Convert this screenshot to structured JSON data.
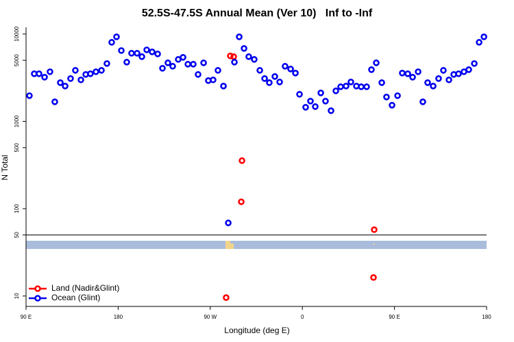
{
  "chart_data": {
    "type": "scatter",
    "title": "52.5S-47.5S Annual Mean (Ver 10)   Inf to -Inf",
    "x_label": "Longitude (deg E)",
    "y_label": "N Total",
    "xlim": [
      90,
      540
    ],
    "xticks": [
      {
        "value": 90,
        "label": "90 E"
      },
      180,
      {
        "value": 270,
        "label": "90 W"
      },
      {
        "value": 360,
        "label": "0"
      },
      {
        "value": 450,
        "label": "90 E"
      },
      {
        "value": 540,
        "label": "180"
      }
    ],
    "ylim": [
      7.6,
      14800
    ],
    "yscale": "log",
    "yticks": [
      10,
      50,
      100,
      500,
      1000,
      5000,
      10000
    ],
    "legend": "lower left",
    "series": [
      {
        "name": "Land (Nadir&Glint)",
        "color": "#ff0000",
        "x": [
          289.6,
          292.9,
          301.0,
          300.3,
          285.5,
          430.2,
          429.5
        ],
        "values": [
          5610,
          5505,
          355,
          120,
          9.6,
          57.5,
          16.3
        ]
      },
      {
        "name": "Ocean (Glint)",
        "color": "#0000ee",
        "x": [
          93.3,
          98.0,
          102.7,
          108.1,
          113.4,
          118.1,
          123.5,
          128.2,
          133.5,
          138.2,
          143.6,
          148.3,
          152.9,
          158.3,
          163.7,
          169.0,
          173.7,
          178.4,
          183.1,
          188.4,
          193.1,
          198.5,
          203.2,
          207.9,
          213.2,
          218.6,
          223.3,
          228.6,
          233.3,
          238.7,
          243.4,
          248.1,
          253.4,
          258.1,
          263.5,
          268.1,
          272.8,
          277.5,
          282.9,
          287.6,
          293.6,
          298.3,
          303.0,
          307.6,
          313.0,
          318.4,
          323.1,
          327.7,
          333.1,
          337.8,
          343.1,
          348.5,
          353.2,
          357.2,
          363.2,
          367.9,
          372.6,
          378.0,
          382.6,
          388.0,
          392.7,
          397.4,
          402.7,
          407.4,
          412.8,
          417.5,
          422.8,
          427.5,
          432.2,
          437.6,
          442.2,
          447.6,
          453.0,
          457.6,
          463.0,
          467.7,
          473.1,
          477.7,
          482.4,
          487.8,
          493.1,
          497.8,
          503.2,
          507.9,
          512.6,
          517.9,
          522.6,
          528.0,
          532.7,
          537.4
        ],
        "values": [
          1968,
          3508,
          3508,
          3206,
          3700,
          1675,
          2775,
          2536,
          3093,
          3838,
          2985,
          3444,
          3508,
          3700,
          3838,
          4594,
          8040,
          9290,
          6470,
          4766,
          6025,
          6025,
          5505,
          6590,
          6250,
          5915,
          4053,
          4680,
          4277,
          5120,
          5408,
          4515,
          4515,
          3444,
          4680,
          2930,
          2985,
          3838,
          2536,
          68.8,
          4766,
          9290,
          6840,
          5505,
          5120,
          3838,
          3093,
          2775,
          3265,
          2825,
          4277,
          3981,
          3573,
          2042,
          1450,
          1706,
          1476,
          2118,
          1706,
          1325,
          2234,
          2490,
          2536,
          2825,
          2536,
          2490,
          2490,
          3910,
          4680,
          2775,
          1900,
          1531,
          1968,
          3573,
          3508,
          3206,
          3700,
          1675,
          2775,
          2536,
          3093,
          3838,
          2985,
          3444,
          3508,
          3700,
          3910,
          4594,
          8040,
          9290
        ]
      }
    ]
  }
}
